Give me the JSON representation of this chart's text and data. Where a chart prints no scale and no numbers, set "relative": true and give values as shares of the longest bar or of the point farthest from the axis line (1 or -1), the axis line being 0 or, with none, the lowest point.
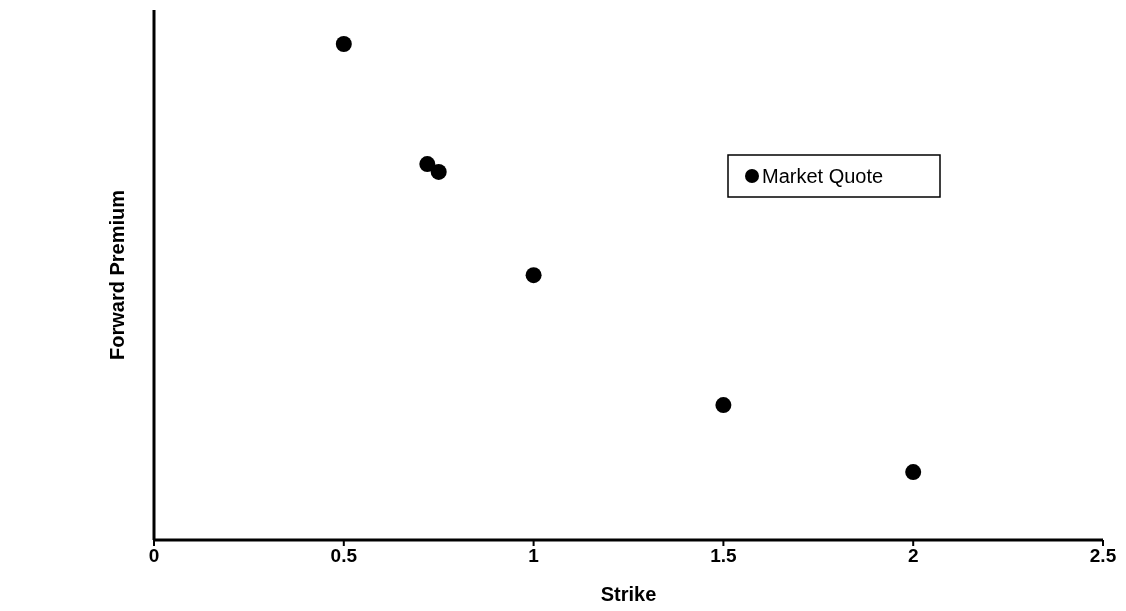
{
  "chart_data": {
    "type": "scatter",
    "xlabel": "Strike",
    "ylabel": "Forward Premium",
    "relative": true,
    "xlim": [
      0,
      2.5
    ],
    "xticks": [
      0,
      0.5,
      1,
      1.5,
      2,
      2.5
    ],
    "legend": "right",
    "marker": "circle",
    "grid": false,
    "series": [
      {
        "name": "Market Quote",
        "color": "#000000",
        "x": [
          0.5,
          0.72,
          0.75,
          1.0,
          1.5,
          2.0
        ],
        "values": [
          1,
          0.758,
          0.742,
          0.534,
          0.272,
          0.137
        ]
      }
    ]
  }
}
